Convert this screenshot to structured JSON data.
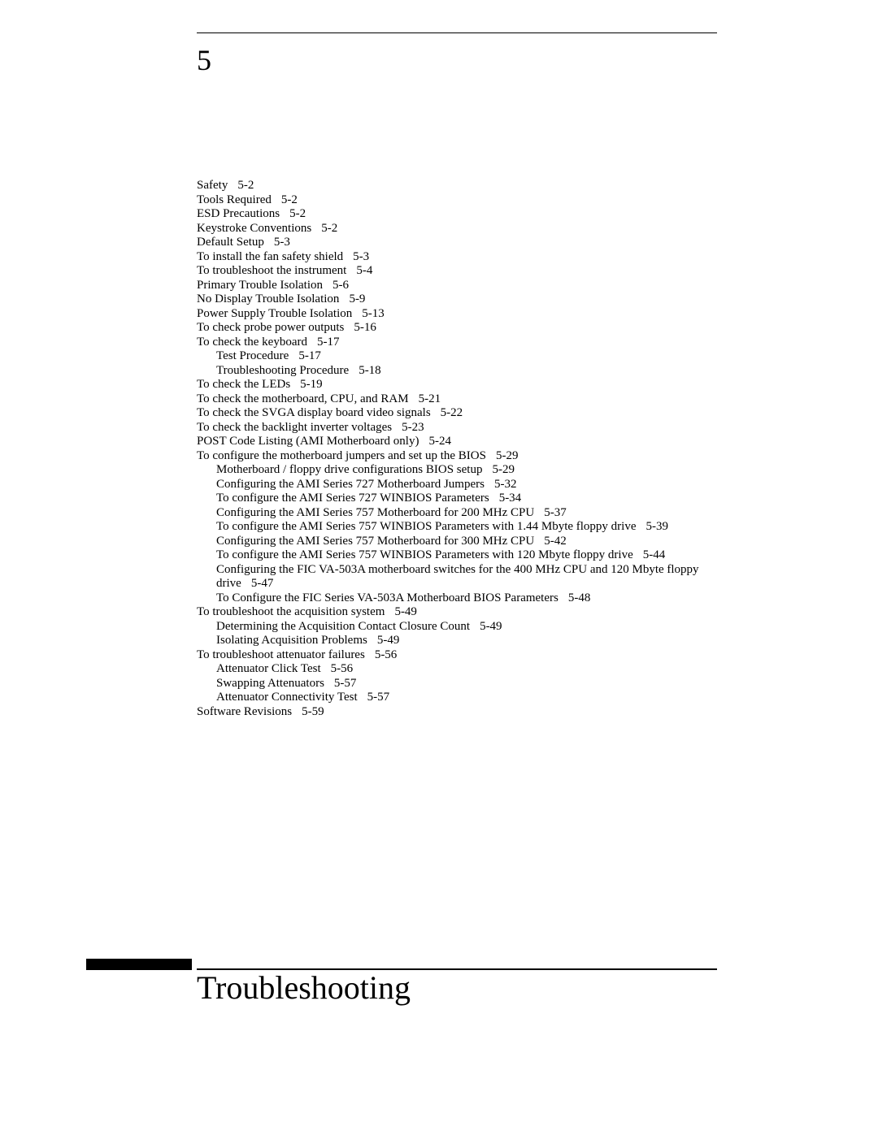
{
  "chapter_number": "5",
  "chapter_title": "Troubleshooting",
  "toc": [
    {
      "indent": 0,
      "text": "Safety",
      "page": "5-2"
    },
    {
      "indent": 0,
      "text": "Tools Required",
      "page": "5-2"
    },
    {
      "indent": 0,
      "text": "ESD Precautions",
      "page": "5-2"
    },
    {
      "indent": 0,
      "text": "Keystroke Conventions",
      "page": "5-2"
    },
    {
      "indent": 0,
      "text": "Default Setup",
      "page": "5-3"
    },
    {
      "indent": 0,
      "text": "To install the fan safety shield",
      "page": "5-3"
    },
    {
      "indent": 0,
      "text": "To troubleshoot the instrument",
      "page": "5-4"
    },
    {
      "indent": 0,
      "text": "Primary Trouble Isolation",
      "page": "5-6"
    },
    {
      "indent": 0,
      "text": "No Display Trouble Isolation",
      "page": "5-9"
    },
    {
      "indent": 0,
      "text": "Power Supply Trouble Isolation",
      "page": "5-13"
    },
    {
      "indent": 0,
      "text": "To check probe power outputs",
      "page": "5-16"
    },
    {
      "indent": 0,
      "text": "To check the keyboard",
      "page": "5-17"
    },
    {
      "indent": 1,
      "text": "Test Procedure",
      "page": "5-17"
    },
    {
      "indent": 1,
      "text": "Troubleshooting Procedure",
      "page": "5-18"
    },
    {
      "indent": 0,
      "text": "To check the LEDs",
      "page": "5-19"
    },
    {
      "indent": 0,
      "text": "To check the motherboard, CPU, and RAM",
      "page": "5-21"
    },
    {
      "indent": 0,
      "text": "To check the SVGA display board video signals",
      "page": "5-22"
    },
    {
      "indent": 0,
      "text": "To check the backlight inverter voltages",
      "page": "5-23"
    },
    {
      "indent": 0,
      "text": "POST Code Listing (AMI Motherboard only)",
      "page": "5-24"
    },
    {
      "indent": 0,
      "text": "To configure the motherboard jumpers and set up the BIOS",
      "page": "5-29"
    },
    {
      "indent": 1,
      "text": "Motherboard / floppy drive configurations BIOS setup",
      "page": "5-29"
    },
    {
      "indent": 1,
      "text": "Configuring the AMI Series 727 Motherboard Jumpers",
      "page": "5-32"
    },
    {
      "indent": 1,
      "text": "To configure the AMI Series 727 WINBIOS Parameters",
      "page": "5-34"
    },
    {
      "indent": 1,
      "text": "Configuring the AMI Series 757 Motherboard for 200 MHz CPU",
      "page": "5-37"
    },
    {
      "indent": 1,
      "text": "To configure the AMI Series 757 WINBIOS Parameters with 1.44 Mbyte floppy drive",
      "page": "5-39"
    },
    {
      "indent": 1,
      "text": "Configuring the AMI Series 757 Motherboard for 300 MHz CPU",
      "page": "5-42"
    },
    {
      "indent": 1,
      "text": "To configure the AMI Series 757 WINBIOS Parameters with 120 Mbyte floppy drive",
      "page": "5-44"
    },
    {
      "indent": 1,
      "text": "Configuring the FIC VA-503A motherboard switches for the 400 MHz CPU and 120 Mbyte floppy drive",
      "page": "5-47"
    },
    {
      "indent": 1,
      "text": "To Configure the FIC Series VA-503A Motherboard BIOS Parameters",
      "page": "5-48"
    },
    {
      "indent": 0,
      "text": "To troubleshoot the acquisition system",
      "page": "5-49"
    },
    {
      "indent": 1,
      "text": "Determining the Acquisition Contact Closure Count",
      "page": "5-49"
    },
    {
      "indent": 1,
      "text": "Isolating Acquisition Problems",
      "page": "5-49"
    },
    {
      "indent": 0,
      "text": "To troubleshoot attenuator failures",
      "page": "5-56"
    },
    {
      "indent": 1,
      "text": "Attenuator Click Test",
      "page": "5-56"
    },
    {
      "indent": 1,
      "text": "Swapping Attenuators",
      "page": "5-57"
    },
    {
      "indent": 1,
      "text": "Attenuator Connectivity Test",
      "page": "5-57"
    },
    {
      "indent": 0,
      "text": "Software Revisions",
      "page": "5-59"
    }
  ]
}
